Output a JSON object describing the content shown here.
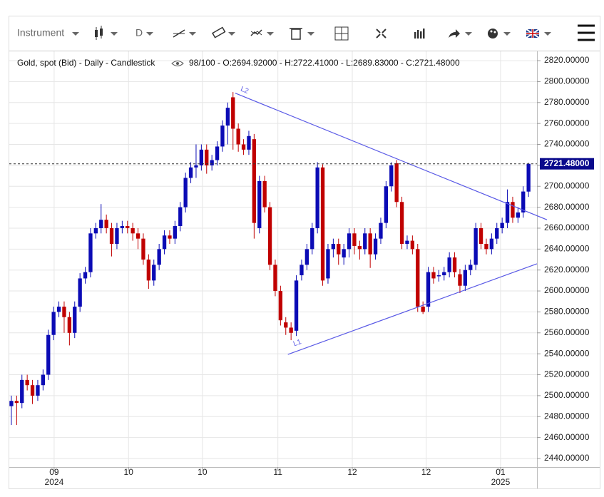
{
  "toolbar": {
    "instrument": "Instrument",
    "period": "D"
  },
  "chart_data": {
    "type": "candlestick",
    "title": "Gold, spot (Bid) - Daily - Candlestick",
    "info": "98/100 - O:2694.92000 - H:2722.41000 - L:2689.83000 - C:2721.48000",
    "up_color": "#0b0bb5",
    "down_color": "#c00000",
    "open": [
      2490,
      2495,
      2493,
      2515,
      2510,
      2500,
      2510,
      2520,
      2558,
      2580,
      2585,
      2575,
      2560,
      2585,
      2612,
      2618,
      2655,
      2660,
      2668,
      2660,
      2645,
      2660,
      2662,
      2660,
      2655,
      2650,
      2630,
      2610,
      2625,
      2640,
      2653,
      2650,
      2662,
      2680,
      2708,
      2718,
      2720,
      2735,
      2720,
      2725,
      2738,
      2758,
      2785,
      2755,
      2740,
      2735,
      2745,
      2660,
      2705,
      2680,
      2625,
      2600,
      2570,
      2565,
      2562,
      2615,
      2625,
      2640,
      2660,
      2718,
      2612,
      2640,
      2645,
      2632,
      2640,
      2655,
      2643,
      2640,
      2655,
      2635,
      2650,
      2665,
      2700,
      2722,
      2685,
      2645,
      2648,
      2640,
      2585,
      2585,
      2618,
      2614,
      2615,
      2618,
      2632,
      2616,
      2605,
      2620,
      2625,
      2660,
      2645,
      2640,
      2650,
      2660,
      2665,
      2685,
      2670,
      2675,
      2694.92
    ],
    "high": [
      2500,
      2500,
      2520,
      2520,
      2515,
      2515,
      2525,
      2563,
      2585,
      2590,
      2590,
      2580,
      2590,
      2617,
      2623,
      2660,
      2665,
      2683,
      2673,
      2665,
      2665,
      2667,
      2667,
      2665,
      2660,
      2655,
      2635,
      2630,
      2645,
      2658,
      2658,
      2667,
      2685,
      2713,
      2723,
      2740,
      2740,
      2740,
      2730,
      2743,
      2763,
      2780,
      2790,
      2760,
      2745,
      2753,
      2750,
      2710,
      2710,
      2685,
      2630,
      2605,
      2575,
      2570,
      2615,
      2630,
      2645,
      2665,
      2723,
      2721,
      2645,
      2650,
      2650,
      2645,
      2660,
      2660,
      2648,
      2660,
      2660,
      2655,
      2670,
      2705,
      2723,
      2725,
      2690,
      2653,
      2653,
      2645,
      2590,
      2623,
      2623,
      2620,
      2623,
      2637,
      2637,
      2621,
      2625,
      2630,
      2665,
      2665,
      2650,
      2655,
      2665,
      2670,
      2697,
      2690,
      2680,
      2700,
      2722.41
    ],
    "low": [
      2472,
      2472,
      2488,
      2505,
      2492,
      2495,
      2505,
      2515,
      2553,
      2575,
      2560,
      2548,
      2555,
      2580,
      2607,
      2613,
      2650,
      2655,
      2655,
      2633,
      2640,
      2655,
      2655,
      2648,
      2640,
      2625,
      2602,
      2605,
      2620,
      2635,
      2645,
      2645,
      2657,
      2675,
      2703,
      2708,
      2715,
      2712,
      2715,
      2720,
      2733,
      2740,
      2735,
      2733,
      2730,
      2730,
      2650,
      2655,
      2675,
      2620,
      2595,
      2567,
      2558,
      2553,
      2557,
      2610,
      2620,
      2635,
      2655,
      2605,
      2607,
      2632,
      2625,
      2625,
      2632,
      2635,
      2630,
      2635,
      2622,
      2630,
      2645,
      2660,
      2695,
      2680,
      2640,
      2640,
      2635,
      2580,
      2578,
      2580,
      2607,
      2609,
      2610,
      2613,
      2613,
      2598,
      2600,
      2615,
      2620,
      2640,
      2635,
      2635,
      2645,
      2655,
      2660,
      2665,
      2665,
      2670,
      2689.83
    ],
    "close": [
      2495,
      2493,
      2515,
      2510,
      2500,
      2510,
      2520,
      2558,
      2580,
      2585,
      2575,
      2560,
      2585,
      2612,
      2618,
      2655,
      2660,
      2668,
      2660,
      2645,
      2660,
      2662,
      2660,
      2655,
      2650,
      2630,
      2610,
      2625,
      2640,
      2653,
      2650,
      2662,
      2680,
      2708,
      2718,
      2720,
      2735,
      2720,
      2725,
      2738,
      2758,
      2775,
      2755,
      2740,
      2735,
      2748,
      2665,
      2705,
      2680,
      2625,
      2600,
      2572,
      2565,
      2560,
      2610,
      2625,
      2640,
      2660,
      2718,
      2610,
      2640,
      2645,
      2635,
      2640,
      2655,
      2643,
      2640,
      2655,
      2635,
      2650,
      2665,
      2700,
      2720,
      2685,
      2645,
      2648,
      2640,
      2585,
      2580,
      2618,
      2612,
      2615,
      2618,
      2632,
      2618,
      2605,
      2620,
      2625,
      2660,
      2645,
      2640,
      2650,
      2660,
      2665,
      2685,
      2670,
      2675,
      2695,
      2721.48
    ],
    "xlim": [
      -0.4,
      99.6
    ],
    "ylim": [
      2431.8,
      2828.9
    ],
    "yticks": [
      {
        "value": 2440,
        "label": "2440.00000"
      },
      {
        "value": 2460,
        "label": "2460.00000"
      },
      {
        "value": 2480,
        "label": "2480.00000"
      },
      {
        "value": 2500,
        "label": "2500.00000"
      },
      {
        "value": 2520,
        "label": "2520.00000"
      },
      {
        "value": 2540,
        "label": "2540.00000"
      },
      {
        "value": 2560,
        "label": "2560.00000"
      },
      {
        "value": 2580,
        "label": "2580.00000"
      },
      {
        "value": 2600,
        "label": "2600.00000"
      },
      {
        "value": 2620,
        "label": "2620.00000"
      },
      {
        "value": 2640,
        "label": "2640.00000"
      },
      {
        "value": 2660,
        "label": "2660.00000"
      },
      {
        "value": 2680,
        "label": "2680.00000"
      },
      {
        "value": 2700,
        "label": "2700.00000"
      },
      {
        "value": 2720,
        "label": "2720.00000"
      },
      {
        "value": 2740,
        "label": "2740.00000"
      },
      {
        "value": 2760,
        "label": "2760.00000"
      },
      {
        "value": 2780,
        "label": "2780.00000"
      },
      {
        "value": 2800,
        "label": "2800.00000"
      },
      {
        "value": 2820,
        "label": "2820.00000"
      }
    ],
    "xticks": [
      {
        "value": 8.1,
        "label": "09"
      },
      {
        "value": 22.2,
        "label": "10"
      },
      {
        "value": 36.2,
        "label": "10"
      },
      {
        "value": 50.5,
        "label": "11"
      },
      {
        "value": 64.6,
        "label": "12"
      },
      {
        "value": 78.6,
        "label": "12"
      },
      {
        "value": 92.7,
        "label": "01"
      }
    ],
    "year_labels": [
      {
        "value": 8.1,
        "label": "2024"
      },
      {
        "value": 92.7,
        "label": "2025"
      }
    ],
    "last_price": {
      "value": 2721.48,
      "label": "2721.48000"
    },
    "grid": true,
    "trend_lines": [
      {
        "name": "L1",
        "color": "#5a5ae6",
        "x": [
          52.4,
          99.6
        ],
        "y": [
          2539.4,
          2626
        ]
      },
      {
        "name": "L2",
        "color": "#5a5ae6",
        "x": [
          42.4,
          101.5
        ],
        "y": [
          2789,
          2668
        ]
      }
    ]
  }
}
